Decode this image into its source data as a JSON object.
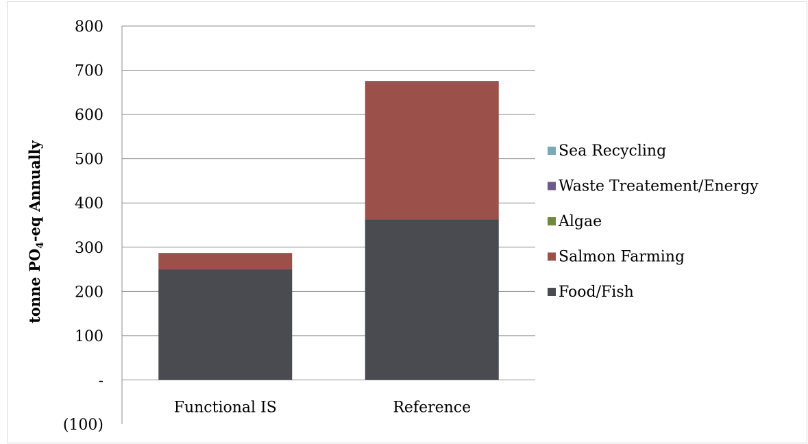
{
  "chart_data": {
    "type": "bar",
    "stacked": true,
    "title": "",
    "xlabel": "",
    "ylabel": {
      "prefix": "tonne PO",
      "subscript": "4",
      "suffix": "-eq Annually"
    },
    "ylim": [
      -100,
      800
    ],
    "yticks": [
      {
        "value": -100,
        "label": "(100)"
      },
      {
        "value": 0,
        "label": "-"
      },
      {
        "value": 100,
        "label": "100"
      },
      {
        "value": 200,
        "label": "200"
      },
      {
        "value": 300,
        "label": "300"
      },
      {
        "value": 400,
        "label": "400"
      },
      {
        "value": 500,
        "label": "500"
      },
      {
        "value": 600,
        "label": "600"
      },
      {
        "value": 700,
        "label": "700"
      },
      {
        "value": 800,
        "label": "800"
      }
    ],
    "grid": true,
    "legend_position": "right",
    "categories": [
      "Functional IS",
      "Reference"
    ],
    "series": [
      {
        "name": "Food/Fish",
        "color": "#4a4b50",
        "values": [
          250,
          363
        ]
      },
      {
        "name": "Salmon Farming",
        "color": "#9b5149",
        "values": [
          37,
          311
        ]
      },
      {
        "name": "Algae",
        "color": "#6f8a3f",
        "values": [
          0,
          0
        ]
      },
      {
        "name": "Waste Treatement/Energy",
        "color": "#6e5a8a",
        "values": [
          0,
          2
        ]
      },
      {
        "name": "Sea Recycling",
        "color": "#7aaab8",
        "values": [
          0,
          0
        ]
      }
    ]
  }
}
